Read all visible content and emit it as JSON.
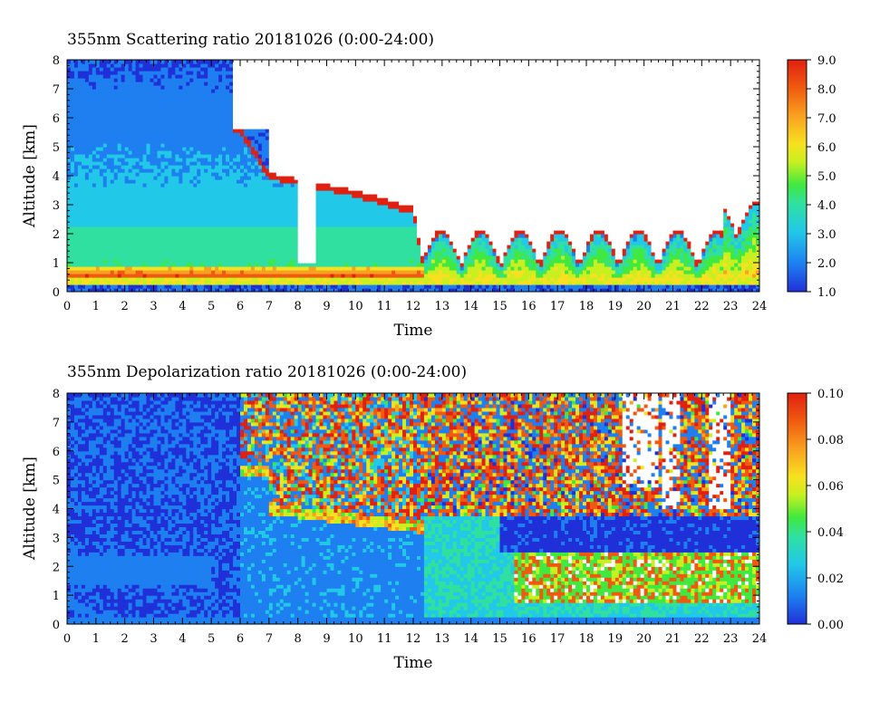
{
  "chart_data": [
    {
      "type": "heatmap",
      "title": "355nm Scattering ratio  20181026 (0:00-24:00)",
      "xlabel": "Time",
      "ylabel": "Altitude [km]",
      "xlim": [
        0,
        24
      ],
      "ylim": [
        0,
        8
      ],
      "x_ticks": [
        "0",
        "1",
        "2",
        "3",
        "4",
        "5",
        "6",
        "7",
        "8",
        "9",
        "10",
        "11",
        "12",
        "13",
        "14",
        "15",
        "16",
        "17",
        "18",
        "19",
        "20",
        "21",
        "22",
        "23",
        "24"
      ],
      "y_ticks": [
        "0",
        "1",
        "2",
        "3",
        "4",
        "5",
        "6",
        "7",
        "8"
      ],
      "colorbar": {
        "min": 1.0,
        "max": 9.0,
        "ticks": [
          "1.0",
          "2.0",
          "3.0",
          "4.0",
          "5.0",
          "6.0",
          "7.0",
          "8.0",
          "9.0"
        ]
      },
      "colormap": [
        "#2030d8",
        "#1e7ff0",
        "#22c8e8",
        "#30e0a0",
        "#40e840",
        "#c8f020",
        "#f8e020",
        "#f8a020",
        "#f05a10",
        "#e02010"
      ],
      "features": {
        "surface_layer_top_km": 0.8,
        "high_value_layer_km": [
          0.4,
          0.8
        ],
        "cloud_top_boundary": [
          [
            6,
            5.6
          ],
          [
            7,
            4.0
          ],
          [
            8,
            3.8
          ],
          [
            9,
            3.6
          ],
          [
            10,
            3.4
          ],
          [
            11,
            3.1
          ],
          [
            12,
            2.8
          ],
          [
            12.4,
            0.6
          ]
        ],
        "no_data_gaps_time": [
          [
            5.8,
            7.0
          ],
          [
            8.0,
            8.6
          ]
        ]
      }
    },
    {
      "type": "heatmap",
      "title": "355nm Depolarization ratio  20181026 (0:00-24:00)",
      "xlabel": "Time",
      "ylabel": "Altitude [km]",
      "xlim": [
        0,
        24
      ],
      "ylim": [
        0,
        8
      ],
      "x_ticks": [
        "0",
        "1",
        "2",
        "3",
        "4",
        "5",
        "6",
        "7",
        "8",
        "9",
        "10",
        "11",
        "12",
        "13",
        "14",
        "15",
        "16",
        "17",
        "18",
        "19",
        "20",
        "21",
        "22",
        "23",
        "24"
      ],
      "y_ticks": [
        "0",
        "1",
        "2",
        "3",
        "4",
        "5",
        "6",
        "7",
        "8"
      ],
      "colorbar": {
        "min": 0.0,
        "max": 0.1,
        "ticks": [
          "0.00",
          "0.02",
          "0.04",
          "0.06",
          "0.08",
          "0.10"
        ]
      },
      "colormap": [
        "#2030d8",
        "#1e7ff0",
        "#22c8e8",
        "#30e0a0",
        "#40e840",
        "#c8f020",
        "#f8e020",
        "#f8a020",
        "#f05a10",
        "#e02010"
      ],
      "features": {
        "noisy_high_region_start_time": 6,
        "high_depol_band_km": [
          1.0,
          2.5
        ],
        "low_depol_band_km": [
          2.5,
          3.8
        ],
        "no_data_gaps_time": [
          [
            19.2,
            20.5
          ],
          [
            20.6,
            21.2
          ],
          [
            22.2,
            23.0
          ]
        ]
      }
    }
  ]
}
